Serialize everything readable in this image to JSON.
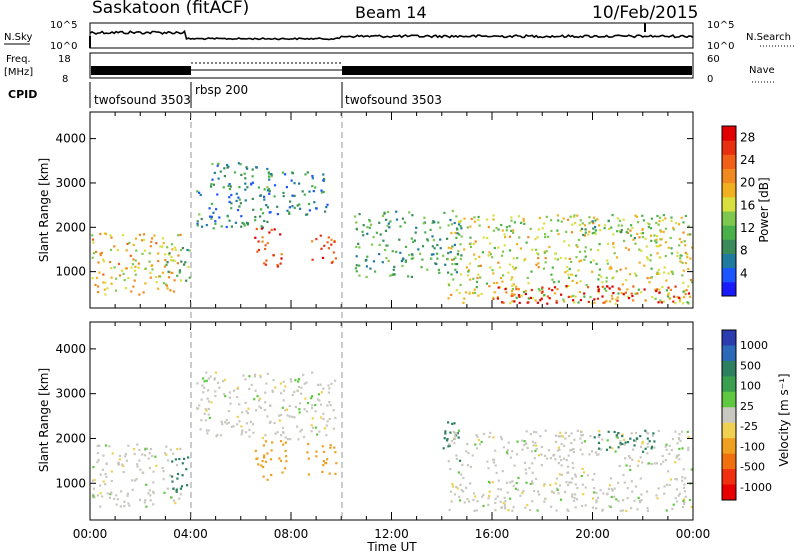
{
  "header": {
    "station": "Saskatoon (fitACF)",
    "beam": "Beam 14",
    "date": "10/Feb/2015"
  },
  "top_panels": {
    "nsky_label": "N.Sky",
    "nsky_ticks": [
      "10^5",
      "10^0"
    ],
    "nsearch_ticks": [
      "10^5",
      "10^0"
    ],
    "nsearch_label": "N.Search",
    "freq_label_1": "Freq.",
    "freq_label_2": "[MHz]",
    "freq_ticks": [
      "18",
      "8"
    ],
    "nave_ticks": [
      "60",
      "0"
    ],
    "nave_label": "Nave",
    "cpid_label": "CPID",
    "cpid_segments": [
      {
        "name": "twofsound 3503",
        "start": "00:00",
        "end": "04:00"
      },
      {
        "name": "rbsp 200",
        "start": "04:00",
        "end": "10:00"
      },
      {
        "name": "twofsound 3503",
        "start": "10:00",
        "end": "24:00"
      }
    ]
  },
  "x_ticks": [
    "00:00",
    "04:00",
    "08:00",
    "12:00",
    "16:00",
    "20:00",
    "00:00"
  ],
  "x_label": "Time UT",
  "y_label": "Slant Range [km]",
  "y_ticks": [
    "1000",
    "2000",
    "3000",
    "4000"
  ],
  "power_colorbar": {
    "label": "Power [dB]",
    "ticks": [
      "4",
      "8",
      "12",
      "16",
      "20",
      "24",
      "28"
    ],
    "colors": [
      "#1a1aff",
      "#1a55ff",
      "#1f7aa0",
      "#3a8a5a",
      "#4ab04a",
      "#7ec850",
      "#d8e040",
      "#f0b020",
      "#f08a20",
      "#f06018",
      "#e83010",
      "#e00000"
    ]
  },
  "velocity_colorbar": {
    "label": "Velocity [m s⁻¹]",
    "ticks": [
      "1000",
      "500",
      "100",
      "25",
      "-25",
      "-100",
      "-500",
      "-1000"
    ],
    "colors": [
      "#2a3cb0",
      "#2a6ab8",
      "#2c8060",
      "#3aa050",
      "#60c840",
      "#c8c8c0",
      "#f0d050",
      "#f0a020",
      "#f07010",
      "#f03010",
      "#e80000"
    ],
    "ground_scatter_color": "#c8c8c0"
  },
  "chart_data": [
    {
      "type": "heatmap",
      "title": "Power",
      "xlabel": "Time UT",
      "ylabel": "Slant Range [km]",
      "x_range_hours": [
        0,
        24
      ],
      "y_range_km": [
        180,
        4600
      ],
      "value_range": [
        0,
        30
      ],
      "regions": [
        {
          "t": [
            0.0,
            3.6
          ],
          "r": [
            500,
            1900
          ],
          "value": 18
        },
        {
          "t": [
            3.0,
            4.1
          ],
          "r": [
            800,
            1600
          ],
          "value": 12
        },
        {
          "t": [
            4.2,
            7.2
          ],
          "r": [
            2000,
            3500
          ],
          "value": 8
        },
        {
          "t": [
            7.0,
            9.5
          ],
          "r": [
            2300,
            3300
          ],
          "value": 8
        },
        {
          "t": [
            6.5,
            7.6
          ],
          "r": [
            1100,
            2000
          ],
          "value": 26
        },
        {
          "t": [
            8.8,
            9.8
          ],
          "r": [
            1200,
            1900
          ],
          "value": 24
        },
        {
          "t": [
            10.5,
            14.8
          ],
          "r": [
            900,
            2400
          ],
          "value": 10
        },
        {
          "t": [
            14.2,
            24.0
          ],
          "r": [
            300,
            2300
          ],
          "value": 16
        },
        {
          "t": [
            16.0,
            24.0
          ],
          "r": [
            300,
            700
          ],
          "value": 28
        },
        {
          "t": [
            19.5,
            22.5
          ],
          "r": [
            1700,
            2200
          ],
          "value": 12
        }
      ]
    },
    {
      "type": "heatmap",
      "title": "Velocity",
      "xlabel": "Time UT",
      "ylabel": "Slant Range [km]",
      "x_range_hours": [
        0,
        24
      ],
      "y_range_km": [
        180,
        4600
      ],
      "value_range": [
        -1000,
        1000
      ],
      "regions": [
        {
          "t": [
            0.0,
            3.6
          ],
          "r": [
            500,
            1900
          ],
          "value": 0
        },
        {
          "t": [
            3.2,
            4.1
          ],
          "r": [
            800,
            1600
          ],
          "value": 150
        },
        {
          "t": [
            4.2,
            9.8
          ],
          "r": [
            2000,
            3500
          ],
          "value": 0
        },
        {
          "t": [
            6.5,
            7.8
          ],
          "r": [
            1100,
            2000
          ],
          "value": -300
        },
        {
          "t": [
            8.6,
            9.8
          ],
          "r": [
            1200,
            1900
          ],
          "value": -300
        },
        {
          "t": [
            14.0,
            14.8
          ],
          "r": [
            1500,
            2400
          ],
          "value": 150
        },
        {
          "t": [
            14.2,
            24.0
          ],
          "r": [
            400,
            2200
          ],
          "value": 0
        },
        {
          "t": [
            20.0,
            22.5
          ],
          "r": [
            1700,
            2200
          ],
          "value": 200
        }
      ]
    }
  ]
}
